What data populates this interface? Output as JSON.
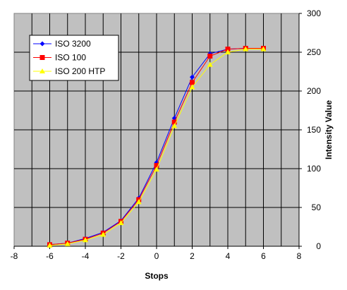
{
  "chart_data": {
    "type": "line",
    "xlabel": "Stops",
    "ylabel": "Intensity Value",
    "xlim": [
      -8,
      8
    ],
    "ylim": [
      0,
      300
    ],
    "x_ticks": [
      "-8",
      "-6",
      "-4",
      "-2",
      "0",
      "2",
      "4",
      "6",
      "8"
    ],
    "y_ticks": [
      "0",
      "50",
      "100",
      "150",
      "200",
      "250",
      "300"
    ],
    "grid": true,
    "plot_background": "#c0c0c0",
    "legend_position": "top-left",
    "x": [
      -6,
      -5,
      -4,
      -3,
      -2,
      -1,
      0,
      1,
      2,
      3,
      4,
      5,
      6
    ],
    "series": [
      {
        "name": "ISO 3200",
        "color": "#0000ff",
        "marker": "diamond",
        "values": [
          2,
          4,
          10,
          18,
          33,
          62,
          108,
          165,
          218,
          248,
          254,
          255,
          255
        ]
      },
      {
        "name": "ISO 100",
        "color": "#ff0000",
        "marker": "square",
        "values": [
          2,
          4,
          9,
          17,
          32,
          60,
          104,
          160,
          211,
          245,
          254,
          255,
          255
        ]
      },
      {
        "name": "ISO 200 HTP",
        "color": "#ffff00",
        "marker": "triangle",
        "values": [
          1,
          3,
          8,
          15,
          30,
          57,
          99,
          155,
          205,
          234,
          250,
          254,
          254
        ]
      }
    ]
  }
}
